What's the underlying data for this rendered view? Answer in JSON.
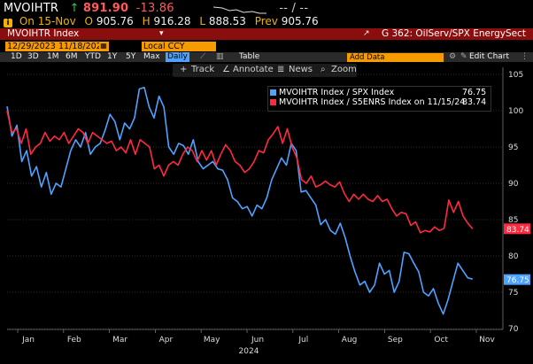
{
  "header": {
    "ticker": "MVOIHTR",
    "arrow": "↑",
    "last": "891.90",
    "change": "-13.86",
    "dashes": "-- / --",
    "date_label": "On 15-Nov",
    "open_label": "O",
    "open": "905.76",
    "high_label": "H",
    "high": "916.28",
    "low_label": "L",
    "low": "888.53",
    "prev_label": "Prev",
    "prev": "905.76"
  },
  "titlebar": {
    "index_name": "MVOIHTR Index",
    "gnum": "G 362: OilServ/SPX EnergySect"
  },
  "range": {
    "start": "12/29/2023",
    "end": "11/18/2024",
    "ccy": "Local CCY"
  },
  "toolbar": {
    "frames": [
      "1D",
      "3D",
      "1M",
      "6M",
      "YTD",
      "1Y",
      "5Y",
      "Max"
    ],
    "daily": "Daily",
    "table": "Table",
    "add_data": "Add Data",
    "edit_chart": "Edit Chart",
    "track": "Track",
    "annotate": "Annotate",
    "news": "News",
    "zoom": "Zoom"
  },
  "colors": {
    "blue": "#4da3ff",
    "red": "#ff2a3f",
    "accent": "#f59b00",
    "title_bg": "#8b0e0e"
  },
  "chart_data": {
    "type": "line",
    "x_labels": [
      "Jan",
      "Feb",
      "Mar",
      "Apr",
      "May",
      "Jun",
      "Jul",
      "Aug",
      "Sep",
      "Oct",
      "Nov"
    ],
    "year_label": "2024",
    "ylim": [
      70,
      106
    ],
    "yticks": [
      70,
      75,
      80,
      85,
      90,
      95,
      100,
      105
    ],
    "series": [
      {
        "name": "MVOIHTR Index / SPX Index",
        "last": "76.75",
        "color": "#4da3ff",
        "values": [
          100.6,
          96.5,
          98,
          93,
          94.5,
          91,
          92.3,
          89.5,
          91.5,
          88.5,
          90,
          89.5,
          92,
          94.5,
          96,
          95,
          97,
          94,
          95,
          95.5,
          97.3,
          99.5,
          98.5,
          96,
          98.3,
          97.5,
          99,
          103,
          103.2,
          100.5,
          99,
          102,
          100.5,
          95,
          94,
          95.5,
          95.2,
          94,
          96,
          93,
          92,
          92.5,
          93,
          92,
          91.8,
          90.5,
          88,
          87.5,
          86.5,
          86.8,
          85.5,
          87,
          86.5,
          88,
          90.5,
          92,
          93.5,
          92.5,
          95.5,
          94.5,
          88.8,
          89,
          88,
          87,
          84.3,
          85,
          83.5,
          83,
          84.5,
          82.5,
          80,
          77.8,
          76,
          76.5,
          75,
          76,
          79,
          77.5,
          78,
          75,
          76.5,
          80.5,
          80.3,
          79,
          77.8,
          75,
          74.5,
          75.5,
          73.5,
          72,
          74,
          76.5,
          79,
          78,
          77,
          76.8
        ],
        "x0": 0,
        "x1": 10.15
      },
      {
        "name": "MVOIHTR Index / S5ENRS Index on 11/15/24",
        "last": "83.74",
        "color": "#ff2a3f",
        "values": [
          100,
          97,
          97.5,
          95.5,
          97.5,
          94,
          95,
          95.5,
          97,
          95.8,
          96.5,
          96,
          97,
          95.5,
          96.5,
          97.5,
          97,
          95.5,
          97,
          96.5,
          96,
          95.5,
          95.8,
          94.5,
          95,
          94.2,
          96,
          94,
          96,
          95.5,
          95,
          92,
          92.5,
          91,
          92.5,
          93,
          92.5,
          94,
          95,
          94.5,
          93,
          94.5,
          93.2,
          94.5,
          92.5,
          94,
          95.3,
          94.5,
          93,
          92.5,
          91.5,
          92,
          93,
          94.5,
          94.2,
          96,
          96.8,
          97.8,
          95.5,
          97.5,
          95,
          93.5,
          90.5,
          90,
          91,
          89.5,
          89.8,
          90.3,
          89.8,
          89.5,
          90.2,
          88.6,
          87.5,
          88.5,
          87.8,
          88.5,
          87.8,
          87.5,
          88.3,
          87.5,
          87.8,
          86.5,
          85.5,
          86,
          85.8,
          84.2,
          84.7,
          83.2,
          83.5,
          83.3,
          84,
          83.5,
          83.8,
          87.7,
          86,
          87.5,
          85.5,
          84.5,
          83.74
        ],
        "x0": 0,
        "x1": 10.15
      }
    ]
  }
}
